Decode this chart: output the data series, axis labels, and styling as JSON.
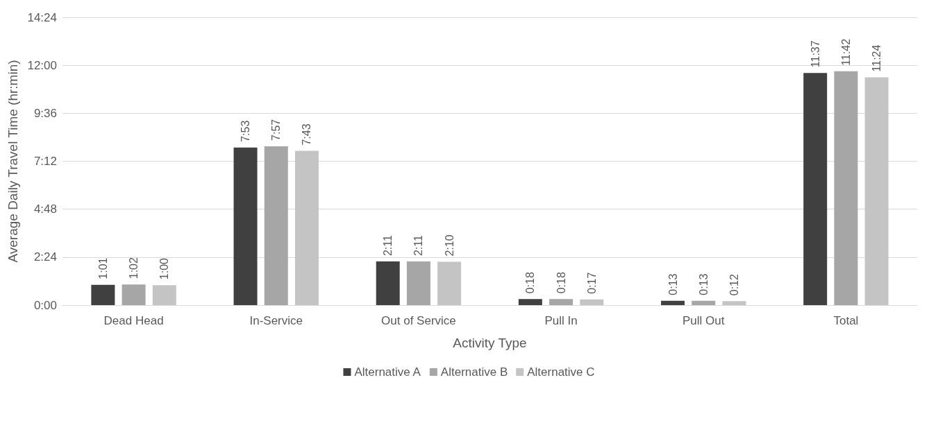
{
  "chart_data": {
    "type": "bar",
    "xlabel": "Activity Type",
    "ylabel": "Average Daily Travel Time (hr:min)",
    "categories": [
      "Dead Head",
      "In-Service",
      "Out of Service",
      "Pull In",
      "Pull Out",
      "Total"
    ],
    "series": [
      {
        "name": "Alternative A",
        "color": "#404040",
        "values": [
          61,
          473,
          131,
          18,
          13,
          697
        ],
        "value_labels": [
          "1:01",
          "7:53",
          "2:11",
          "0:18",
          "0:13",
          "11:37"
        ]
      },
      {
        "name": "Alternative B",
        "color": "#a6a6a6",
        "values": [
          62,
          477,
          131,
          18,
          13,
          702
        ],
        "value_labels": [
          "1:02",
          "7:57",
          "2:11",
          "0:18",
          "0:13",
          "11:42"
        ]
      },
      {
        "name": "Alternative C",
        "color": "#c4c4c4",
        "values": [
          60,
          463,
          130,
          17,
          12,
          684
        ],
        "value_labels": [
          "1:00",
          "7:43",
          "2:10",
          "0:17",
          "0:12",
          "11:24"
        ]
      }
    ],
    "ylim": [
      0,
      864
    ],
    "yticks": [
      {
        "value": 0,
        "label": "0:00"
      },
      {
        "value": 144,
        "label": "2:24"
      },
      {
        "value": 288,
        "label": "4:48"
      },
      {
        "value": 432,
        "label": "7:12"
      },
      {
        "value": 576,
        "label": "9:36"
      },
      {
        "value": 720,
        "label": "12:00"
      },
      {
        "value": 864,
        "label": "14:24"
      }
    ],
    "grid": "y",
    "legend": "bottom"
  }
}
